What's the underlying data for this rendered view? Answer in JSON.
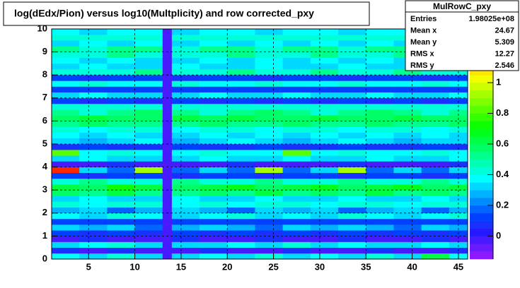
{
  "chart_data": {
    "type": "heatmap",
    "title": "log(dEdx/Pion) versus log10(Multplicity) and row corrected_pxy",
    "xlim": [
      1,
      46
    ],
    "ylim": [
      0,
      10
    ],
    "xticks": [
      5,
      10,
      15,
      20,
      25,
      30,
      35,
      40,
      45
    ],
    "yticks": [
      0,
      1,
      2,
      3,
      4,
      5,
      6,
      7,
      8,
      9,
      10
    ],
    "zlim": [
      -0.15,
      1.35
    ],
    "zticks": [
      0,
      0.2,
      0.4,
      0.6,
      0.8,
      1
    ],
    "grid": true,
    "xbins": [
      1,
      4,
      7,
      10,
      13,
      14,
      17,
      20,
      23,
      26,
      29,
      32,
      35,
      38,
      41,
      44,
      46
    ],
    "ybins": [
      0,
      0.25,
      0.5,
      0.75,
      1,
      1.25,
      1.5,
      1.75,
      2,
      2.25,
      2.5,
      2.75,
      3,
      3.25,
      3.5,
      3.75,
      4,
      4.25,
      4.5,
      4.75,
      5,
      5.25,
      5.5,
      5.75,
      6,
      6.25,
      6.5,
      6.75,
      7,
      7.25,
      7.5,
      7.75,
      8,
      8.25,
      8.5,
      8.75,
      9,
      9.25,
      9.5,
      9.75,
      10
    ],
    "z": [
      [
        0.35,
        0.3,
        0.4,
        0.3,
        0,
        0.3,
        0.35,
        0.3,
        0.4,
        0.3,
        0.35,
        0.3,
        0.4,
        0.3,
        0.6,
        0.35
      ],
      [
        0.05,
        0,
        0.05,
        0,
        0,
        0,
        0.05,
        0,
        0,
        0.05,
        0,
        0,
        0.05,
        0,
        0,
        0.05
      ],
      [
        0.3,
        0.35,
        0.4,
        0.3,
        0,
        0.3,
        0.3,
        0.35,
        0.3,
        0.4,
        0.3,
        0.35,
        0.3,
        0.3,
        0.35,
        0.3
      ],
      [
        0,
        0.05,
        0,
        0,
        0,
        0.05,
        0,
        0,
        0.05,
        0,
        0,
        0.05,
        0,
        0,
        0.05,
        0
      ],
      [
        0.1,
        0.05,
        0.1,
        0.05,
        0,
        0.1,
        0.05,
        0.1,
        0.05,
        0.1,
        0.05,
        0.1,
        0.05,
        0.1,
        0.05,
        0.1
      ],
      [
        0.3,
        0.25,
        0.3,
        0.2,
        0,
        0.25,
        0.3,
        0.25,
        0.2,
        0.3,
        0.25,
        0.3,
        0.25,
        0.2,
        0.3,
        0.25
      ],
      [
        0.1,
        0.15,
        0.1,
        0.1,
        0,
        0.1,
        0.15,
        0.1,
        0.1,
        0.15,
        0.1,
        0.1,
        0.15,
        0.1,
        0.1,
        0.15
      ],
      [
        0.35,
        0.3,
        0.4,
        0.35,
        0,
        0.3,
        0.35,
        0.4,
        0.3,
        0.35,
        0.3,
        0.4,
        0.35,
        0.3,
        0.35,
        0.4
      ],
      [
        0.25,
        0.3,
        0.2,
        0.25,
        0,
        0.3,
        0.25,
        0.2,
        0.3,
        0.25,
        0.3,
        0.2,
        0.25,
        0.3,
        0.2,
        0.25
      ],
      [
        0.4,
        0.35,
        0.4,
        0.45,
        0,
        0.35,
        0.4,
        0.35,
        0.45,
        0.4,
        0.35,
        0.4,
        0.45,
        0.35,
        0.4,
        0.4
      ],
      [
        0.3,
        0.35,
        0.3,
        0.3,
        0,
        0.35,
        0.3,
        0.3,
        0.35,
        0.3,
        0.3,
        0.35,
        0.3,
        0.3,
        0.35,
        0.3
      ],
      [
        0.55,
        0.5,
        0.6,
        0.5,
        0,
        0.5,
        0.55,
        0.5,
        0.6,
        0.5,
        0.55,
        0.5,
        0.6,
        0.5,
        0.55,
        0.5
      ],
      [
        0.6,
        0.55,
        0.7,
        0.6,
        0,
        0.55,
        0.6,
        0.65,
        0.55,
        0.6,
        0.65,
        0.55,
        0.6,
        0.65,
        0.55,
        0.6
      ],
      [
        0.45,
        0.5,
        0.45,
        0.4,
        0,
        0.5,
        0.45,
        0.4,
        0.5,
        0.45,
        0.4,
        0.5,
        0.45,
        0.4,
        0.5,
        0.45
      ],
      [
        0.1,
        0.05,
        0.1,
        0.1,
        0,
        0.05,
        0.1,
        0.1,
        0.05,
        0.1,
        0.1,
        0.05,
        0.1,
        0.1,
        0.05,
        0.1
      ],
      [
        1.3,
        0.3,
        0.2,
        0.9,
        0,
        0.2,
        0.3,
        0.2,
        0.9,
        0.2,
        0.3,
        0.9,
        0.2,
        0.3,
        0.2,
        0.3
      ],
      [
        0,
        0,
        0.05,
        0,
        0,
        0,
        0,
        0.05,
        0,
        0,
        0,
        0.05,
        0,
        0,
        0,
        0.05
      ],
      [
        0.3,
        0.35,
        0.3,
        0.3,
        0,
        0.3,
        0.35,
        0.3,
        0.3,
        0.35,
        0.3,
        0.3,
        0.35,
        0.3,
        0.3,
        0.35
      ],
      [
        0.8,
        0.35,
        0.4,
        0.35,
        0,
        0.35,
        0.4,
        0.35,
        0.35,
        0.8,
        0.35,
        0.4,
        0.35,
        0.35,
        0.4,
        0.35
      ],
      [
        0.05,
        0.1,
        0.05,
        0.05,
        0,
        0.1,
        0.05,
        0.05,
        0.1,
        0.05,
        0.05,
        0.1,
        0.05,
        0.05,
        0.1,
        0.05
      ],
      [
        0.3,
        0.25,
        0.3,
        0.35,
        0,
        0.25,
        0.3,
        0.35,
        0.3,
        0.25,
        0.3,
        0.35,
        0.3,
        0.25,
        0.3,
        0.3
      ],
      [
        0.35,
        0.3,
        0.35,
        0.3,
        0,
        0.3,
        0.35,
        0.3,
        0.35,
        0.3,
        0.35,
        0.3,
        0.35,
        0.3,
        0.35,
        0.3
      ],
      [
        0.4,
        0.35,
        0.4,
        0.4,
        0,
        0.35,
        0.4,
        0.4,
        0.35,
        0.4,
        0.4,
        0.35,
        0.4,
        0.4,
        0.35,
        0.4
      ],
      [
        0.5,
        0.55,
        0.5,
        0.5,
        0,
        0.5,
        0.55,
        0.5,
        0.5,
        0.55,
        0.5,
        0.5,
        0.55,
        0.5,
        0.5,
        0.55
      ],
      [
        0.55,
        0.6,
        0.55,
        0.55,
        0,
        0.6,
        0.55,
        0.6,
        0.55,
        0.55,
        0.6,
        0.55,
        0.55,
        0.6,
        0.55,
        0.55
      ],
      [
        0.5,
        0.45,
        0.5,
        0.55,
        0,
        0.5,
        0.45,
        0.5,
        0.55,
        0.5,
        0.45,
        0.5,
        0.55,
        0.5,
        0.45,
        0.5
      ],
      [
        0.4,
        0.45,
        0.4,
        0.4,
        0,
        0.45,
        0.4,
        0.4,
        0.45,
        0.4,
        0.4,
        0.45,
        0.4,
        0.4,
        0.45,
        0.4
      ],
      [
        0.1,
        0.05,
        0.1,
        0.05,
        0,
        0.1,
        0.05,
        0.1,
        0.05,
        0.1,
        0.05,
        0.1,
        0.05,
        0.1,
        0.05,
        0.1
      ],
      [
        0.3,
        0.35,
        0.3,
        0.3,
        0,
        0.3,
        0.35,
        0.3,
        0.3,
        0.35,
        0.3,
        0.3,
        0.35,
        0.3,
        0.3,
        0.35
      ],
      [
        0.1,
        0.1,
        0.15,
        0.1,
        0,
        0.1,
        0.1,
        0.15,
        0.1,
        0.1,
        0.15,
        0.1,
        0.1,
        0.15,
        0.1,
        0.1
      ],
      [
        0.35,
        0.4,
        0.35,
        0.35,
        0,
        0.4,
        0.35,
        0.35,
        0.4,
        0.35,
        0.35,
        0.4,
        0.35,
        0.35,
        0.4,
        0.35
      ],
      [
        0.1,
        0.05,
        0.1,
        0.1,
        0,
        0.05,
        0.1,
        0.1,
        0.05,
        0.1,
        0.1,
        0.05,
        0.1,
        0.1,
        0.05,
        0.1
      ],
      [
        0.45,
        0.4,
        0.45,
        0.5,
        0,
        0.4,
        0.45,
        0.5,
        0.4,
        0.45,
        0.5,
        0.4,
        0.45,
        0.5,
        0.4,
        0.45
      ],
      [
        0.3,
        0.35,
        0.3,
        0.3,
        0,
        0.35,
        0.3,
        0.3,
        0.35,
        0.3,
        0.3,
        0.35,
        0.3,
        0.3,
        0.35,
        0.3
      ],
      [
        0.35,
        0.3,
        0.35,
        0.3,
        0,
        0.3,
        0.35,
        0.3,
        0.35,
        0.3,
        0.35,
        0.3,
        0.35,
        0.3,
        0.35,
        0.3
      ],
      [
        0.45,
        0.4,
        0.5,
        0.45,
        0,
        0.4,
        0.45,
        0.5,
        0.4,
        0.45,
        0.5,
        0.4,
        0.45,
        0.5,
        0.4,
        0.45
      ],
      [
        0.5,
        0.45,
        0.5,
        0.5,
        0,
        0.45,
        0.5,
        0.5,
        0.45,
        0.5,
        0.5,
        0.45,
        0.5,
        0.5,
        0.45,
        0.5
      ],
      [
        0.3,
        0.35,
        0.3,
        0.35,
        0,
        0.3,
        0.35,
        0.3,
        0.35,
        0.3,
        0.35,
        0.3,
        0.35,
        0.3,
        0.35,
        0.3
      ],
      [
        0.4,
        0.45,
        0.4,
        0.4,
        0,
        0.45,
        0.4,
        0.4,
        0.45,
        0.4,
        0.4,
        0.45,
        0.4,
        0.4,
        0.45,
        0.4
      ],
      [
        0.35,
        0.3,
        0.35,
        0.35,
        0,
        0.3,
        0.35,
        0.35,
        0.3,
        0.35,
        0.35,
        0.3,
        0.35,
        0.35,
        0.3,
        0.35
      ]
    ],
    "stats": {
      "title": "MulRowC_pxy",
      "rows": [
        {
          "name": "Entries",
          "value": 198025000,
          "label": "1.98025e+08"
        },
        {
          "name": "Mean x",
          "value": 24.67
        },
        {
          "name": "Mean y",
          "value": 5.309
        },
        {
          "name": "RMS x",
          "value": 12.27
        },
        {
          "name": "RMS y",
          "value": 2.546
        }
      ]
    }
  }
}
